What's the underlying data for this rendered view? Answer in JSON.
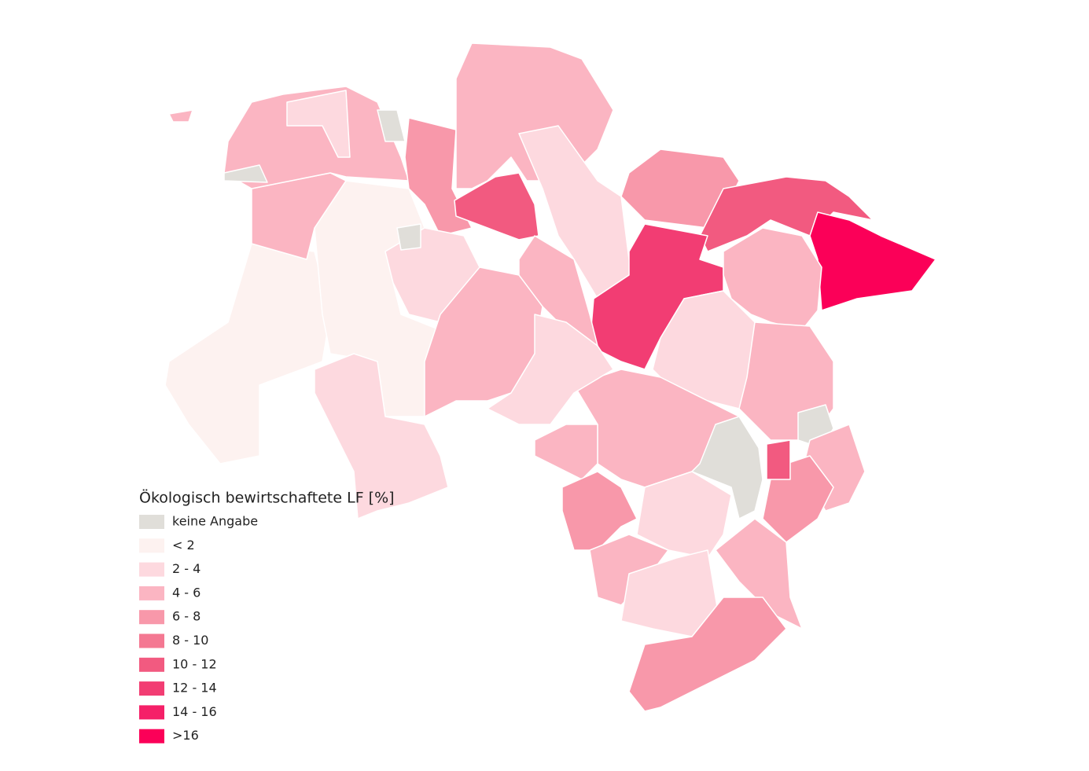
{
  "legend": {
    "title": "Ökologisch bewirtschaftete LF [%]",
    "items": [
      {
        "label": "keine Angabe",
        "color": "#e0ded9"
      },
      {
        "label": "< 2",
        "color": "#fdf2f0"
      },
      {
        "label": "2 - 4",
        "color": "#fdd9df"
      },
      {
        "label": "4 - 6",
        "color": "#fbb5c2"
      },
      {
        "label": "6 - 8",
        "color": "#f898aa"
      },
      {
        "label": "8 - 10",
        "color": "#f47892"
      },
      {
        "label": "10 - 12",
        "color": "#f25a80"
      },
      {
        "label": "12 - 14",
        "color": "#f23d73"
      },
      {
        "label": "14 - 16",
        "color": "#f52068"
      },
      {
        "label": ">16",
        "color": "#fb0058"
      }
    ]
  }
}
